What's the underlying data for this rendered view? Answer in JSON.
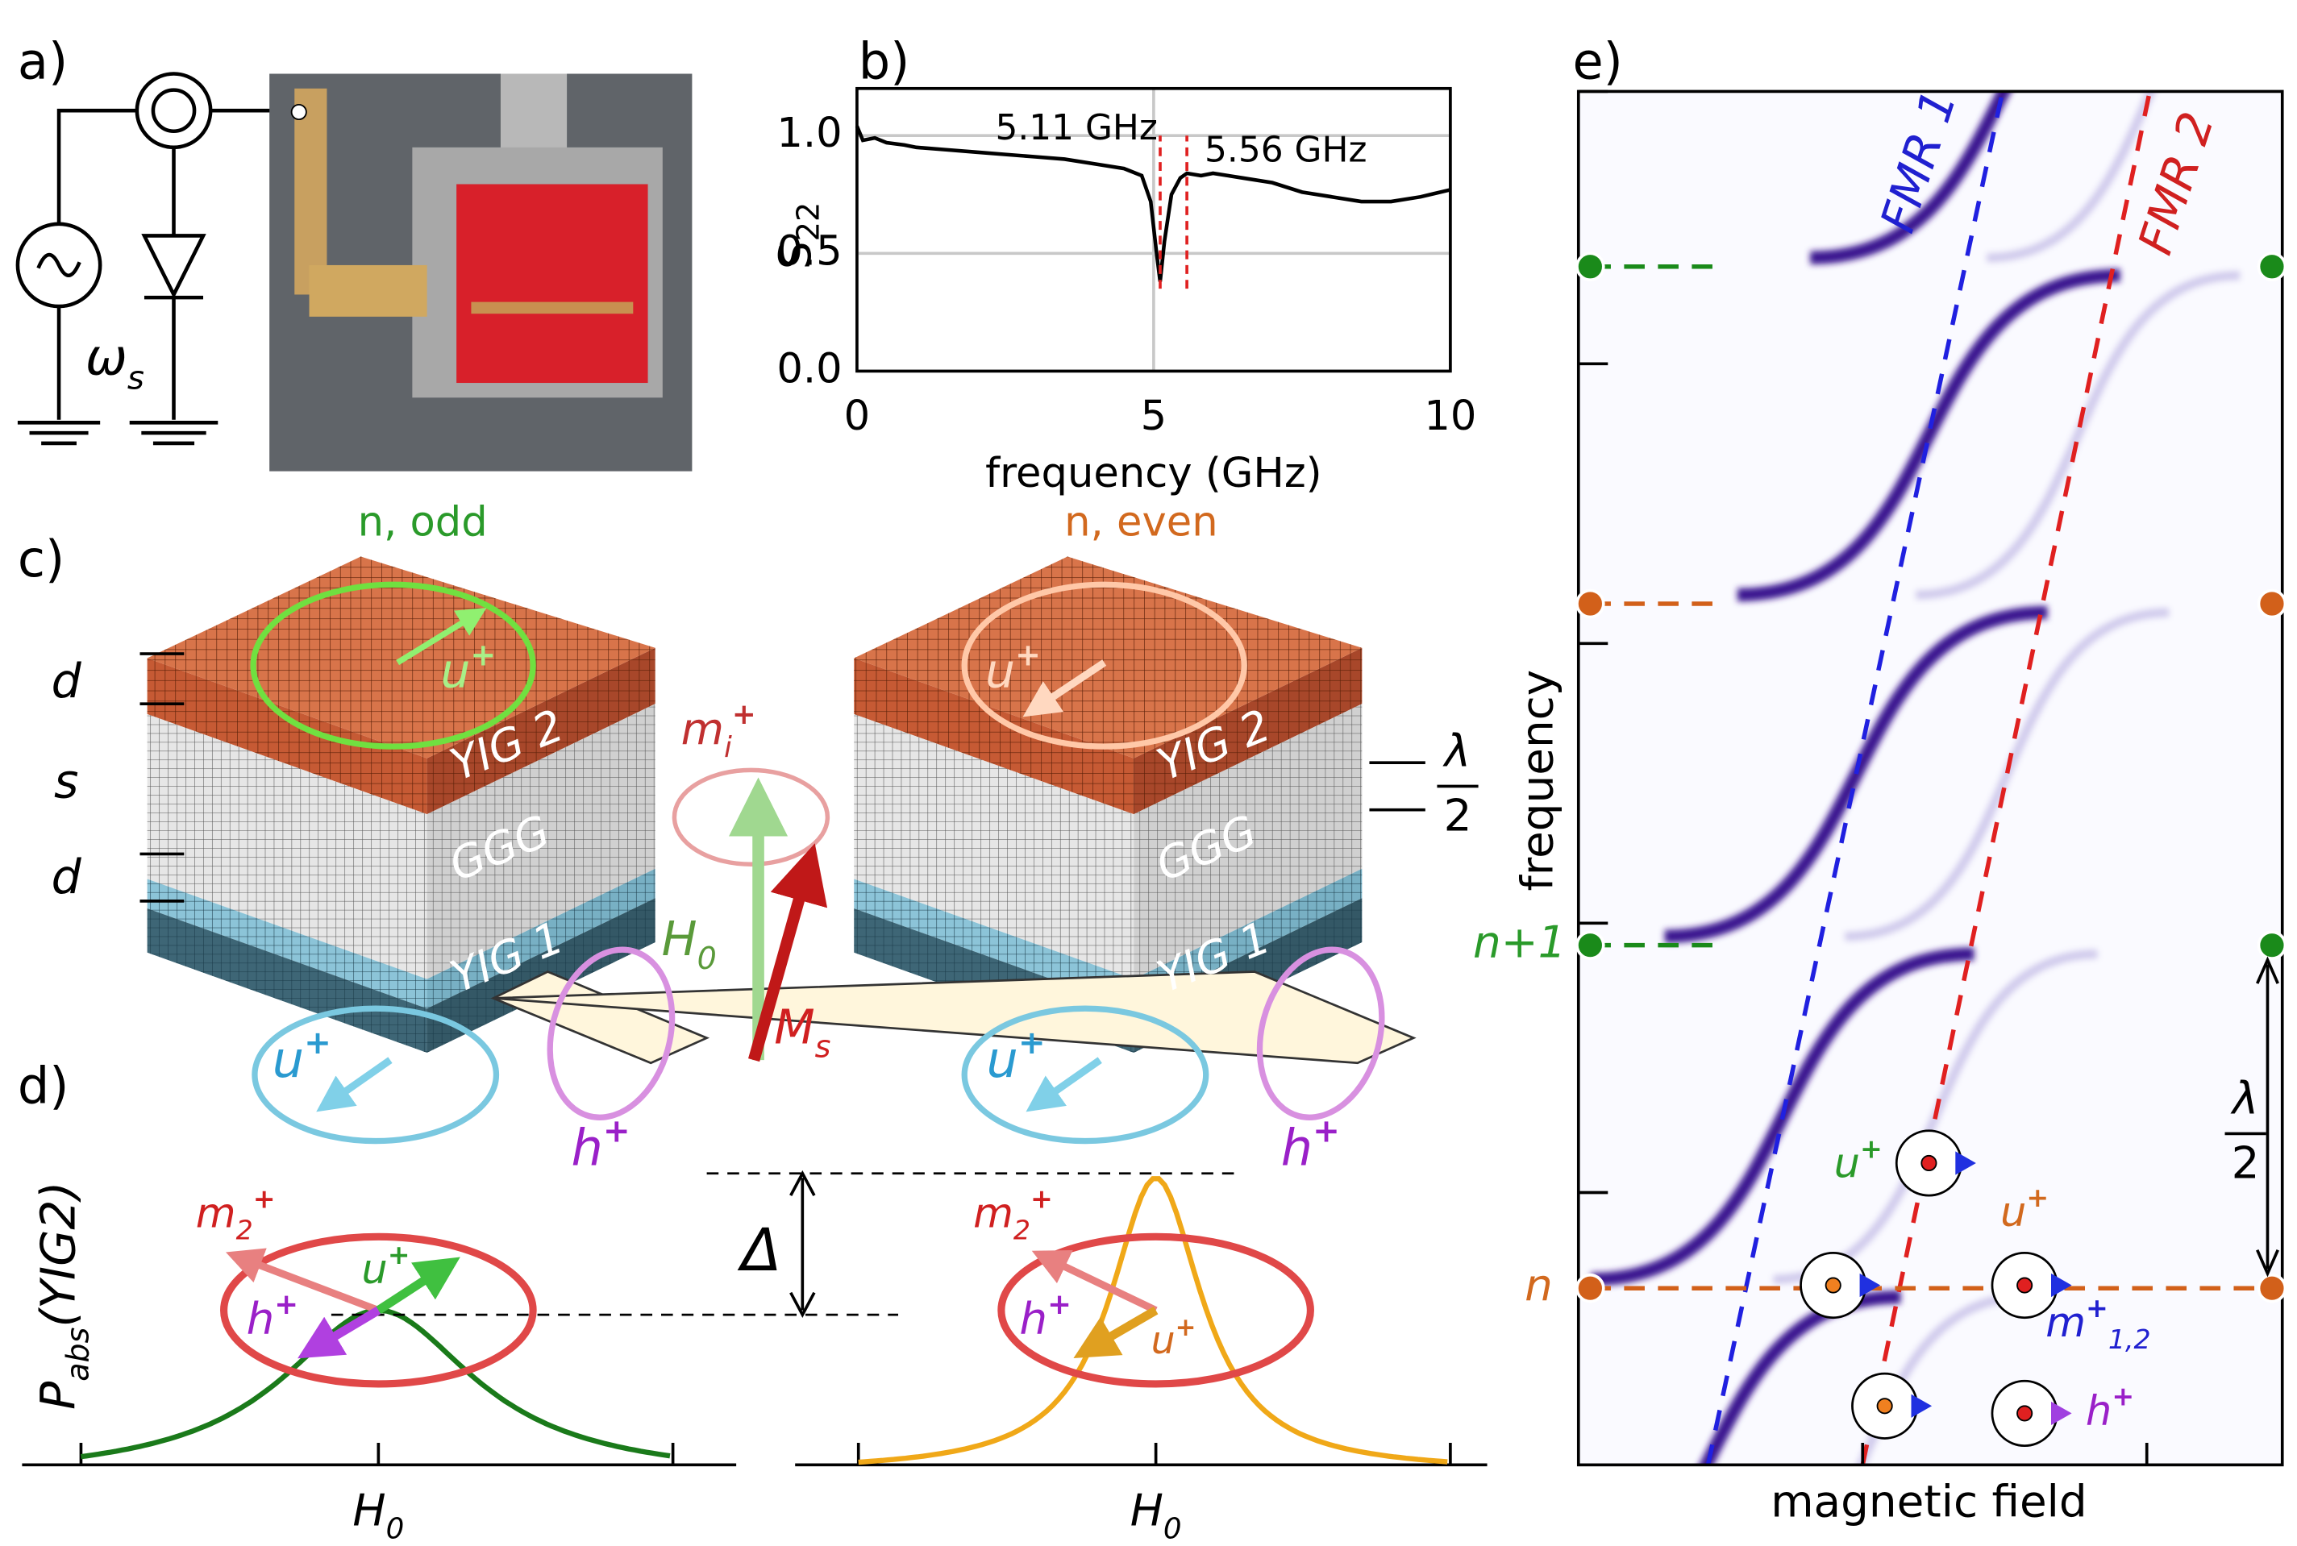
{
  "labels": [
    {
      "t": "a)"
    },
    {
      "t": "b)"
    },
    {
      "t": "c)"
    },
    {
      "t": "d)"
    },
    {
      "t": "e)"
    },
    {
      "t": "ω",
      "sub": "s"
    },
    {
      "t": "n, odd"
    },
    {
      "t": "n, even"
    },
    {
      "t": "YIG 2"
    },
    {
      "t": "GGG"
    },
    {
      "t": "YIG 1"
    },
    {
      "t": "YIG 2"
    },
    {
      "t": "GGG"
    },
    {
      "t": "YIG 1"
    },
    {
      "t": "d"
    },
    {
      "t": "s"
    },
    {
      "t": "d"
    },
    {
      "num": "λ",
      "den": "2"
    },
    {
      "t": "u",
      "sup": "+"
    },
    {
      "t": "u",
      "sup": "+"
    },
    {
      "t": "m",
      "sub": "i",
      "sup": "+"
    },
    {
      "t": "H",
      "sub": "0"
    },
    {
      "t": "M",
      "sub": "s"
    },
    {
      "t": "u",
      "sup": "+"
    },
    {
      "t": "h",
      "sup": "+"
    },
    {
      "t": "u",
      "sup": "+"
    },
    {
      "t": "h",
      "sup": "+"
    },
    {
      "t": "P",
      "sub": "abs",
      "rest": "(YIG2)"
    },
    {
      "t": "m",
      "sub": "2",
      "sup": "+"
    },
    {
      "t": "u",
      "sup": "+"
    },
    {
      "t": "h",
      "sup": "+"
    },
    {
      "t": "H",
      "sub": "0"
    },
    {
      "t": "Δ"
    },
    {
      "t": "m",
      "sub": "2",
      "sup": "+"
    },
    {
      "t": "h",
      "sup": "+"
    },
    {
      "t": "u",
      "sup": "+"
    },
    {
      "t": "H",
      "sub": "0"
    },
    {
      "t": "FMR 1"
    },
    {
      "t": "FMR 2"
    },
    {
      "t": "n+1"
    },
    {
      "t": "n"
    },
    {
      "num": "λ",
      "den": "2"
    },
    {
      "t": "u",
      "sup": "+"
    },
    {
      "t": "u",
      "sup": "+"
    },
    {
      "t": "m",
      "sup": "+",
      "sub": "1,2"
    },
    {
      "t": "h",
      "sup": "+"
    },
    {
      "t": "frequency"
    },
    {
      "t": "magnetic field"
    }
  ],
  "chart_data": {
    "type": "line",
    "xlabel": "frequency (GHz)",
    "ylabel": "S",
    "ylabel_sub": "22",
    "x": [
      0,
      0.1,
      0.3,
      0.5,
      0.8,
      1,
      1.5,
      2,
      2.5,
      3,
      3.5,
      4,
      4.5,
      4.8,
      4.95,
      5.05,
      5.11,
      5.18,
      5.3,
      5.45,
      5.56,
      5.8,
      6,
      6.5,
      7,
      7.5,
      8,
      8.5,
      9,
      9.5,
      10
    ],
    "values": [
      1.04,
      0.98,
      0.99,
      0.97,
      0.96,
      0.95,
      0.94,
      0.93,
      0.92,
      0.91,
      0.9,
      0.88,
      0.86,
      0.83,
      0.72,
      0.5,
      0.38,
      0.55,
      0.75,
      0.82,
      0.84,
      0.83,
      0.84,
      0.82,
      0.8,
      0.76,
      0.74,
      0.72,
      0.72,
      0.74,
      0.77
    ],
    "color": "#000000",
    "xlim": [
      0,
      10
    ],
    "ylim": [
      0,
      1.2
    ],
    "xticks": [
      0,
      5,
      10
    ],
    "yticks": [
      {
        "value": 0,
        "label": "0.0"
      },
      0.5,
      {
        "value": 1,
        "label": "1.0"
      }
    ],
    "grid": true,
    "annotations": [
      {
        "x": 5.11,
        "label": "5.11 GHz",
        "color": "#e02020"
      },
      {
        "x": 5.56,
        "label": "5.56 GHz",
        "color": "#e02020"
      }
    ]
  }
}
